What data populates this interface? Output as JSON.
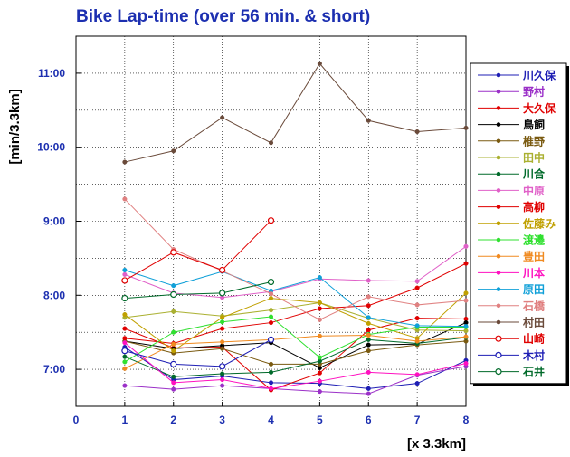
{
  "chart_data": {
    "type": "line",
    "title": "Bike Lap-time (over 56 min. & short)",
    "ylabel": "[min/3.3km]",
    "xlabel": "[x 3.3km]",
    "x": [
      1,
      2,
      3,
      4,
      5,
      6,
      7,
      8
    ],
    "xlim": [
      0,
      8
    ],
    "x_ticks": [
      "0",
      "1",
      "2",
      "3",
      "4",
      "5",
      "6",
      "7",
      "8"
    ],
    "ylim": [
      6.5,
      11.5
    ],
    "y_ticks": [
      {
        "value": 7,
        "label": "7:00"
      },
      {
        "value": 8,
        "label": "8:00"
      },
      {
        "value": 9,
        "label": "9:00"
      },
      {
        "value": 10,
        "label": "10:00"
      },
      {
        "value": 11,
        "label": "11:00"
      }
    ],
    "legend_position": "right",
    "grid": true,
    "series": [
      {
        "name": "川久保",
        "color": "#1e1eb4",
        "marker": "filled",
        "values": [
          7.3,
          6.86,
          6.91,
          6.82,
          6.81,
          6.74,
          6.81,
          7.12
        ]
      },
      {
        "name": "野村",
        "color": "#9b30c8",
        "marker": "filled",
        "values": [
          6.78,
          6.73,
          6.78,
          6.74,
          6.7,
          6.67,
          6.92,
          7.04
        ]
      },
      {
        "name": "大久保",
        "color": "#e00000",
        "marker": "filled",
        "values": [
          7.55,
          7.29,
          7.3,
          6.72,
          6.95,
          7.53,
          7.69,
          7.68
        ]
      },
      {
        "name": "鳥飼",
        "color": "#000000",
        "marker": "filled",
        "values": [
          7.38,
          7.28,
          7.32,
          7.36,
          7.02,
          7.33,
          7.34,
          7.63
        ]
      },
      {
        "name": "椎野",
        "color": "#7a5a10",
        "marker": "filled",
        "values": [
          7.38,
          7.22,
          7.28,
          7.07,
          7.07,
          7.25,
          7.33,
          7.38
        ]
      },
      {
        "name": "田中",
        "color": "#aab030",
        "marker": "filled",
        "values": [
          7.7,
          7.78,
          7.72,
          7.8,
          7.9,
          7.69,
          7.53,
          7.52
        ]
      },
      {
        "name": "川合",
        "color": "#006a2a",
        "marker": "filled",
        "values": [
          7.17,
          6.9,
          6.94,
          6.96,
          7.11,
          7.4,
          7.35,
          7.43
        ]
      },
      {
        "name": "中原",
        "color": "#e060c8",
        "marker": "filled",
        "values": [
          8.28,
          8.03,
          7.97,
          8.05,
          8.22,
          8.2,
          8.19,
          8.66
        ]
      },
      {
        "name": "高柳",
        "color": "#e00000",
        "marker": "filled",
        "values": [
          7.42,
          7.35,
          7.55,
          7.63,
          7.82,
          7.86,
          8.1,
          8.43
        ]
      },
      {
        "name": "佐藤み",
        "color": "#c0a000",
        "marker": "filled",
        "values": [
          7.74,
          7.25,
          7.7,
          7.96,
          7.9,
          7.62,
          7.42,
          8.03
        ]
      },
      {
        "name": "渡邊",
        "color": "#30e030",
        "marker": "filled",
        "values": [
          7.1,
          7.5,
          7.64,
          7.71,
          7.16,
          7.47,
          7.57,
          7.57
        ]
      },
      {
        "name": "豊田",
        "color": "#f08a20",
        "marker": "filled",
        "values": [
          7.01,
          7.34,
          7.37,
          7.4,
          7.45,
          7.46,
          7.38,
          7.44
        ]
      },
      {
        "name": "川本",
        "color": "#ff10c0",
        "marker": "filled",
        "values": [
          7.36,
          6.82,
          6.86,
          6.74,
          6.84,
          6.96,
          6.93,
          7.08
        ]
      },
      {
        "name": "原田",
        "color": "#10a0d8",
        "marker": "filled",
        "values": [
          8.34,
          8.13,
          8.32,
          8.06,
          8.24,
          7.7,
          7.59,
          7.58
        ]
      },
      {
        "name": "石橋",
        "color": "#e08080",
        "marker": "filled",
        "values": [
          9.3,
          8.62,
          8.33,
          8.02,
          7.67,
          7.98,
          7.87,
          7.93
        ]
      },
      {
        "name": "村田",
        "color": "#6a4a3a",
        "marker": "filled",
        "values": [
          9.8,
          9.95,
          10.4,
          10.06,
          11.13,
          10.36,
          10.21,
          10.26
        ]
      },
      {
        "name": "山崎",
        "color": "#e00000",
        "marker": "open",
        "values": [
          8.2,
          8.58,
          8.34,
          9.01,
          null,
          null,
          null,
          null
        ]
      },
      {
        "name": "木村",
        "color": "#1e1eb4",
        "marker": "open",
        "values": [
          7.25,
          7.07,
          7.04,
          7.4,
          null,
          null,
          null,
          null
        ]
      },
      {
        "name": "石井",
        "color": "#006a2a",
        "marker": "open",
        "values": [
          7.96,
          8.01,
          8.03,
          8.18,
          null,
          null,
          null,
          null
        ]
      }
    ]
  }
}
